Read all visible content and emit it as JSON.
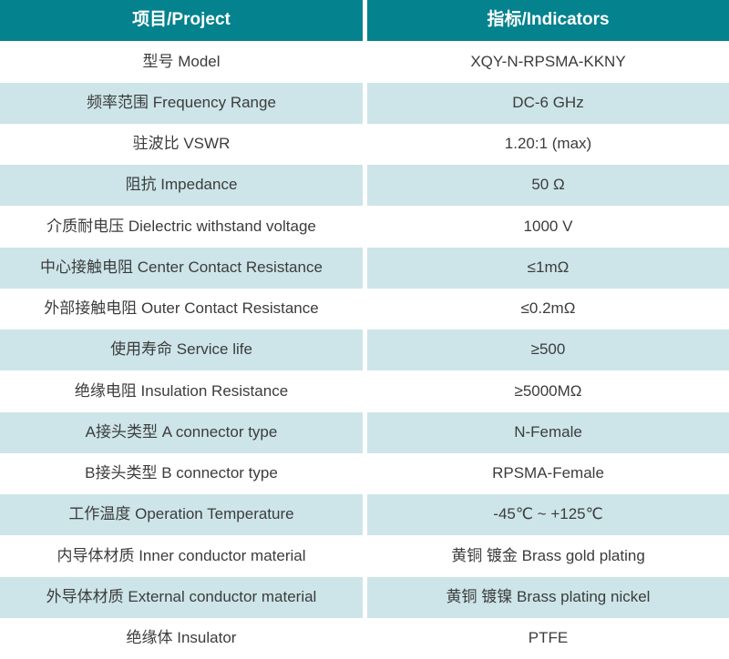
{
  "table": {
    "title_semantic": "rf-adapter-specification-table",
    "colors": {
      "header_bg": "#04828e",
      "header_text": "#ffffff",
      "alt_row_bg": "#cde5e9",
      "row_bg": "#ffffff",
      "body_text": "#3c3c3c",
      "divider": "#ffffff"
    },
    "header": {
      "project": "项目/Project",
      "indicators": "指标/Indicators"
    },
    "rows": [
      {
        "label": "型号 Model",
        "value": "XQY-N-RPSMA-KKNY"
      },
      {
        "label": "频率范围 Frequency Range",
        "value": "DC-6 GHz"
      },
      {
        "label": "驻波比 VSWR",
        "value": "1.20:1 (max)"
      },
      {
        "label": "阻抗 Impedance",
        "value": "50 Ω"
      },
      {
        "label": "介质耐电压 Dielectric withstand voltage",
        "value": "1000 V"
      },
      {
        "label": "中心接触电阻 Center Contact Resistance",
        "value": "≤1mΩ"
      },
      {
        "label": "外部接触电阻 Outer Contact Resistance",
        "value": "≤0.2mΩ"
      },
      {
        "label": "使用寿命 Service life",
        "value": "≥500"
      },
      {
        "label": "绝缘电阻 Insulation Resistance",
        "value": "≥5000MΩ"
      },
      {
        "label": "A接头类型 A connector type",
        "value": "N-Female"
      },
      {
        "label": "B接头类型 B connector type",
        "value": "RPSMA-Female"
      },
      {
        "label": "工作温度 Operation Temperature",
        "value": "-45℃ ~ +125℃"
      },
      {
        "label": "内导体材质 Inner conductor material",
        "value": "黄铜 镀金 Brass gold plating"
      },
      {
        "label": "外导体材质 External conductor material",
        "value": "黄铜 镀镍 Brass plating nickel"
      },
      {
        "label": "绝缘体 Insulator",
        "value": "PTFE"
      }
    ]
  }
}
